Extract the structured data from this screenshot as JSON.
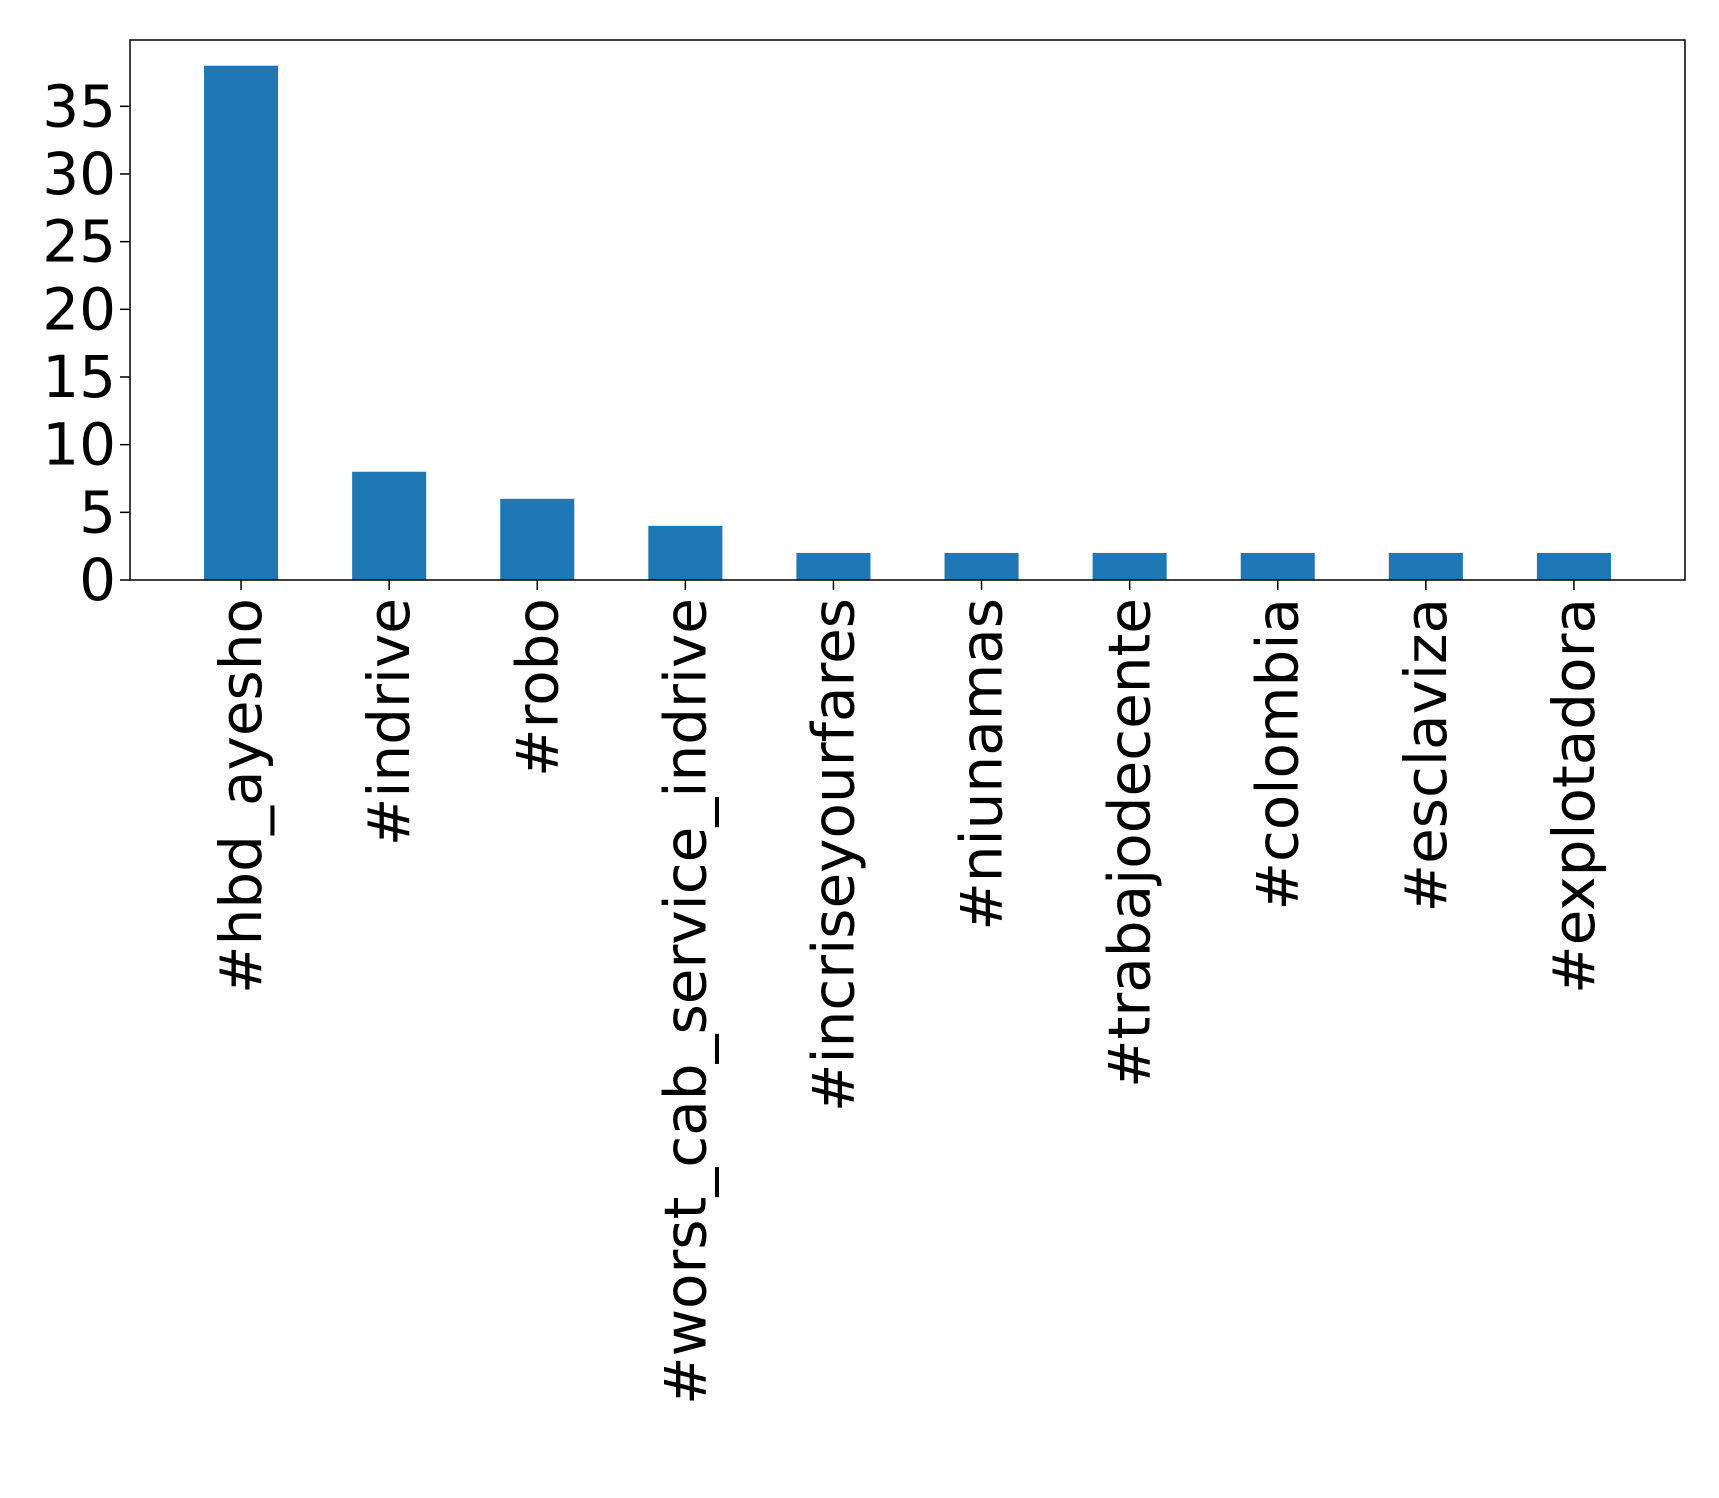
{
  "chart_data": {
    "type": "bar",
    "title": "",
    "xlabel": "",
    "ylabel": "",
    "categories": [
      "#hbd_ayesho",
      "#indrive",
      "#robo",
      "#worst_cab_service_indrive",
      "#incriseyourfares",
      "#niunamas",
      "#trabajodecente",
      "#colombia",
      "#esclaviza",
      "#explotadora"
    ],
    "values": [
      38,
      8,
      6,
      4,
      2,
      2,
      2,
      2,
      2,
      2
    ],
    "ylim": [
      0,
      39.9
    ],
    "yticks": [
      0,
      5,
      10,
      15,
      20,
      25,
      30,
      35
    ],
    "grid": false,
    "legend": "none",
    "bar_color": "#1f77b4",
    "x_tick_rotation": "vertical"
  }
}
